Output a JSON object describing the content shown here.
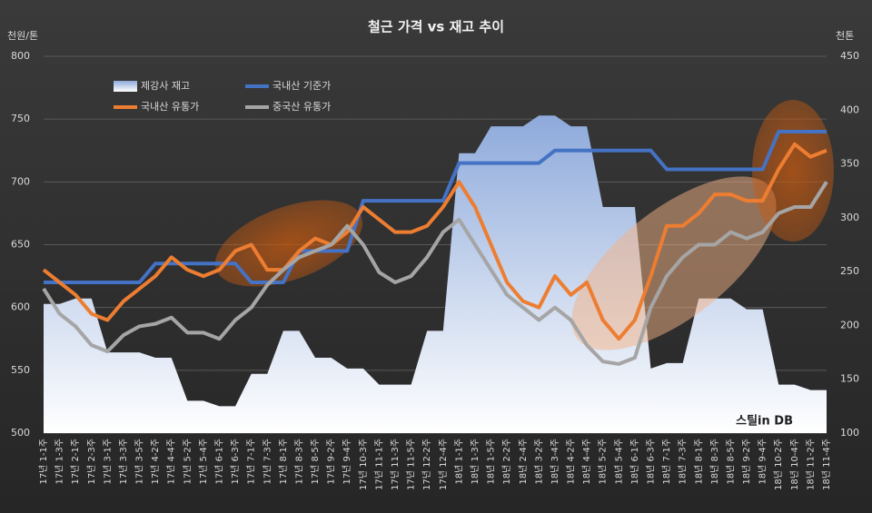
{
  "chart_data": {
    "type": "line",
    "title": "철근 가격 vs 재고 추이",
    "y_label": "천원/톤",
    "y2_label": "천톤",
    "watermark": "스틸in DB",
    "categories": [
      "17년 1-1주",
      "17년 1-3주",
      "17년 2-1주",
      "17년 2-3주",
      "17년 3-1주",
      "17년 3-3주",
      "17년 3-5주",
      "17년 4-2주",
      "17년 4-4주",
      "17년 5-2주",
      "17년 5-4주",
      "17년 6-1주",
      "17년 6-3주",
      "17년 7-1주",
      "17년 7-3주",
      "17년 8-1주",
      "17년 8-3주",
      "17년 8-5주",
      "17년 9-2주",
      "17년 9-4주",
      "17년 10-3주",
      "17년 11-1주",
      "17년 11-3주",
      "17년 11-5주",
      "17년 12-2주",
      "17년 12-4주",
      "18년 1-1주",
      "18년 1-3주",
      "18년 1-5주",
      "18년 2-2주",
      "18년 2-4주",
      "18년 3-2주",
      "18년 3-4주",
      "18년 4-2주",
      "18년 4-4주",
      "18년 5-2주",
      "18년 5-4주",
      "18년 6-1주",
      "18년 6-3주",
      "18년 7-1주",
      "18년 7-3주",
      "18년 8-1주",
      "18년 8-3주",
      "18년 8-5주",
      "18년 9-2주",
      "18년 9-4주",
      "18년 10-2주",
      "18년 10-4주",
      "18년 11-2주",
      "18년 11-4주"
    ],
    "series": [
      {
        "name": "제강사 재고",
        "color": "#b4c7e7",
        "kind": "area",
        "axis": "y2",
        "values": [
          220,
          220,
          225,
          225,
          175,
          175,
          175,
          170,
          170,
          130,
          130,
          125,
          125,
          155,
          155,
          195,
          195,
          170,
          170,
          160,
          160,
          145,
          145,
          145,
          195,
          195,
          360,
          360,
          385,
          385,
          385,
          395,
          395,
          385,
          385,
          310,
          310,
          310,
          160,
          165,
          165,
          225,
          225,
          225,
          215,
          215,
          145,
          145,
          140,
          140
        ]
      },
      {
        "name": "국내산 기준가",
        "color": "#4472c4",
        "kind": "line",
        "values": [
          620,
          620,
          620,
          620,
          620,
          620,
          620,
          635,
          635,
          635,
          635,
          635,
          635,
          620,
          620,
          620,
          645,
          645,
          645,
          645,
          685,
          685,
          685,
          685,
          685,
          685,
          715,
          715,
          715,
          715,
          715,
          715,
          725,
          725,
          725,
          725,
          725,
          725,
          725,
          710,
          710,
          710,
          710,
          710,
          710,
          710,
          740,
          740,
          740,
          740
        ]
      },
      {
        "name": "국내산 유통가",
        "color": "#ed7d31",
        "kind": "line",
        "values": [
          630,
          620,
          610,
          595,
          590,
          605,
          615,
          625,
          640,
          630,
          625,
          630,
          645,
          650,
          630,
          630,
          645,
          655,
          650,
          660,
          680,
          670,
          660,
          660,
          665,
          680,
          700,
          680,
          650,
          620,
          605,
          600,
          625,
          610,
          620,
          590,
          575,
          590,
          625,
          665,
          665,
          675,
          690,
          690,
          685,
          685,
          710,
          730,
          720,
          725
        ]
      },
      {
        "name": "중국산 유통가",
        "color": "#a5a5a5",
        "kind": "line",
        "values": [
          615,
          595,
          585,
          570,
          565,
          578,
          585,
          587,
          592,
          580,
          580,
          575,
          590,
          600,
          618,
          630,
          640,
          645,
          650,
          665,
          650,
          628,
          620,
          625,
          640,
          660,
          670,
          650,
          630,
          610,
          600,
          590,
          600,
          590,
          570,
          557,
          555,
          560,
          600,
          625,
          640,
          650,
          650,
          660,
          655,
          660,
          675,
          680,
          680,
          700
        ]
      }
    ],
    "ylim": [
      500,
      800
    ],
    "yticks": [
      500,
      550,
      600,
      650,
      700,
      750,
      800
    ],
    "y2lim": [
      100,
      450
    ],
    "y2ticks": [
      100,
      150,
      200,
      250,
      300,
      350,
      400,
      450
    ],
    "grid": true
  }
}
